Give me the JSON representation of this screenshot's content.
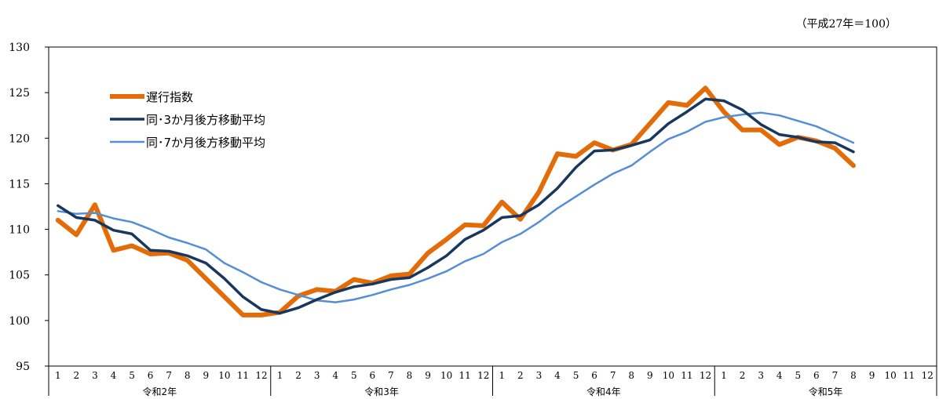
{
  "note": "（平成27年＝100）",
  "chart_data": {
    "type": "line",
    "ylim": [
      95,
      130
    ],
    "yticks": [
      95,
      100,
      105,
      110,
      115,
      120,
      125,
      130
    ],
    "months": [
      "1",
      "2",
      "3",
      "4",
      "5",
      "6",
      "7",
      "8",
      "9",
      "10",
      "11",
      "12"
    ],
    "years": [
      "令和2年",
      "令和3年",
      "令和4年",
      "令和5年"
    ],
    "legend_position": "top-left",
    "series": [
      {
        "name": "遅行指数",
        "color": "#E36C09",
        "width": 6,
        "values": [
          111.0,
          109.4,
          112.7,
          107.7,
          108.2,
          107.3,
          107.4,
          106.6,
          104.6,
          102.6,
          100.6,
          100.6,
          100.9,
          102.7,
          103.4,
          103.2,
          104.5,
          104.1,
          104.9,
          105.1,
          107.4,
          108.9,
          110.5,
          110.4,
          113.0,
          111.1,
          114.1,
          118.3,
          118.0,
          119.5,
          118.7,
          119.3,
          121.6,
          123.9,
          123.6,
          125.5,
          122.9,
          120.9,
          120.9,
          119.3,
          120.1,
          119.7,
          118.9,
          117.0
        ]
      },
      {
        "name": "同･3か月後方移動平均",
        "color": "#17375E",
        "width": 3.5,
        "values": [
          112.6,
          111.3,
          111.0,
          109.9,
          109.5,
          107.7,
          107.6,
          107.1,
          106.3,
          104.6,
          102.6,
          101.2,
          100.8,
          101.4,
          102.3,
          103.1,
          103.7,
          104.0,
          104.5,
          104.7,
          105.8,
          107.1,
          108.9,
          109.9,
          111.3,
          111.5,
          112.7,
          114.5,
          116.8,
          118.6,
          118.7,
          119.2,
          119.8,
          121.6,
          122.9,
          124.3,
          124.1,
          123.1,
          121.5,
          120.4,
          120.1,
          119.6,
          119.5,
          118.5
        ]
      },
      {
        "name": "同･7か月後方移動平均",
        "color": "#558ED5",
        "width": 2.5,
        "values": [
          112.0,
          111.7,
          111.8,
          111.2,
          110.8,
          110.0,
          109.1,
          108.5,
          107.8,
          106.3,
          105.3,
          104.2,
          103.4,
          102.8,
          102.2,
          102.0,
          102.3,
          102.8,
          103.4,
          103.9,
          104.6,
          105.4,
          106.5,
          107.3,
          108.6,
          109.5,
          110.8,
          112.3,
          113.6,
          114.9,
          116.1,
          117.0,
          118.5,
          119.9,
          120.7,
          121.8,
          122.3,
          122.6,
          122.8,
          122.5,
          121.9,
          121.3,
          120.4,
          119.5
        ]
      }
    ]
  }
}
